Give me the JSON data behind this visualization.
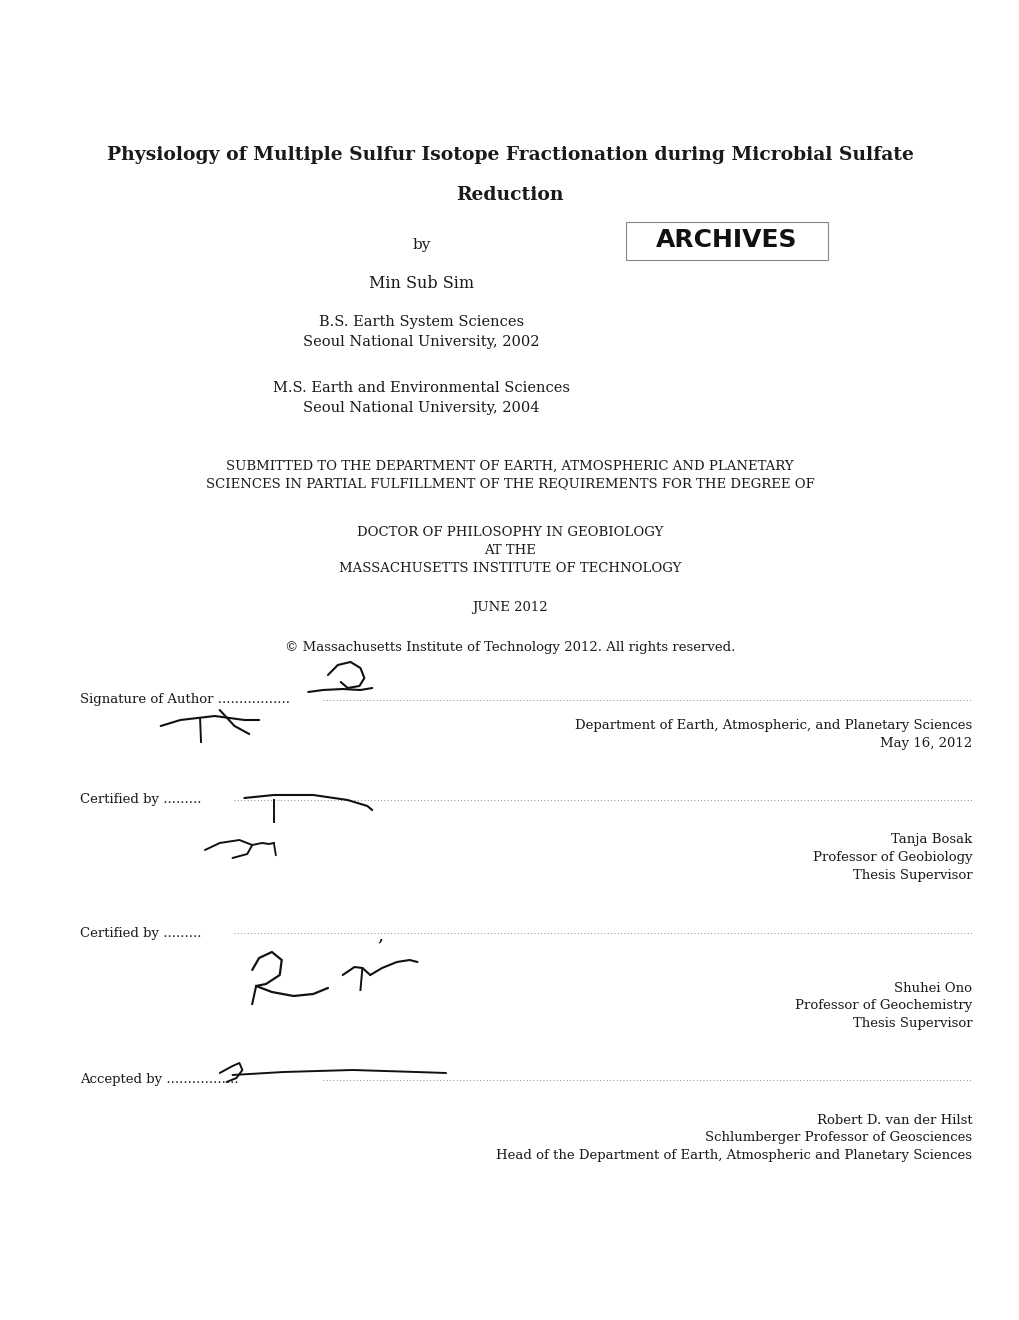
{
  "bg_color": "#ffffff",
  "title_line1": "Physiology of Multiple Sulfur Isotope Fractionation during Microbial Sulfate",
  "title_line2": "Reduction",
  "by": "by",
  "author": "Min Sub Sim",
  "degree1_line1": "B.S. Earth System Sciences",
  "degree1_line2": "Seoul National University, 2002",
  "degree2_line1": "M.S. Earth and Environmental Sciences",
  "degree2_line2": "Seoul National University, 2004",
  "submitted_line1": "SUBMITTED TO THE DEPARTMENT OF EARTH, ATMOSPHERIC AND PLANETARY",
  "submitted_line2": "SCIENCES IN PARTIAL FULFILLMENT OF THE REQUIREMENTS FOR THE DEGREE OF",
  "degree_line1": "DOCTOR OF PHILOSOPHY IN GEOBIOLOGY",
  "degree_line2": "AT THE",
  "degree_line3": "MASSACHUSETTS INSTITUTE OF TECHNOLOGY",
  "date": "JUNE 2012",
  "copyright": "© Massachusetts Institute of Technology 2012. All rights reserved.",
  "sig_label": "Signature of Author",
  "sig_dept": "Department of Earth, Atmospheric, and Planetary Sciences",
  "sig_date": "May 16, 2012",
  "cert1_label": "Certified by .........",
  "cert1_name": "Tanja Bosak",
  "cert1_title1": "Professor of Geobiology",
  "cert1_title2": "Thesis Supervisor",
  "cert2_label": "Certified by .........",
  "cert2_name": "Shuhei Ono",
  "cert2_title1": "Professor of Geochemistry",
  "cert2_title2": "Thesis Supervisor",
  "acc_label": "Accepted by",
  "acc_name": "Robert D. van der Hilst",
  "acc_title1": "Schlumberger Professor of Geosciences",
  "acc_title2": "Head of the Department of Earth, Atmospheric and Planetary Sciences",
  "archives_text": "ARCHIVES",
  "text_color": "#1a1a1a"
}
